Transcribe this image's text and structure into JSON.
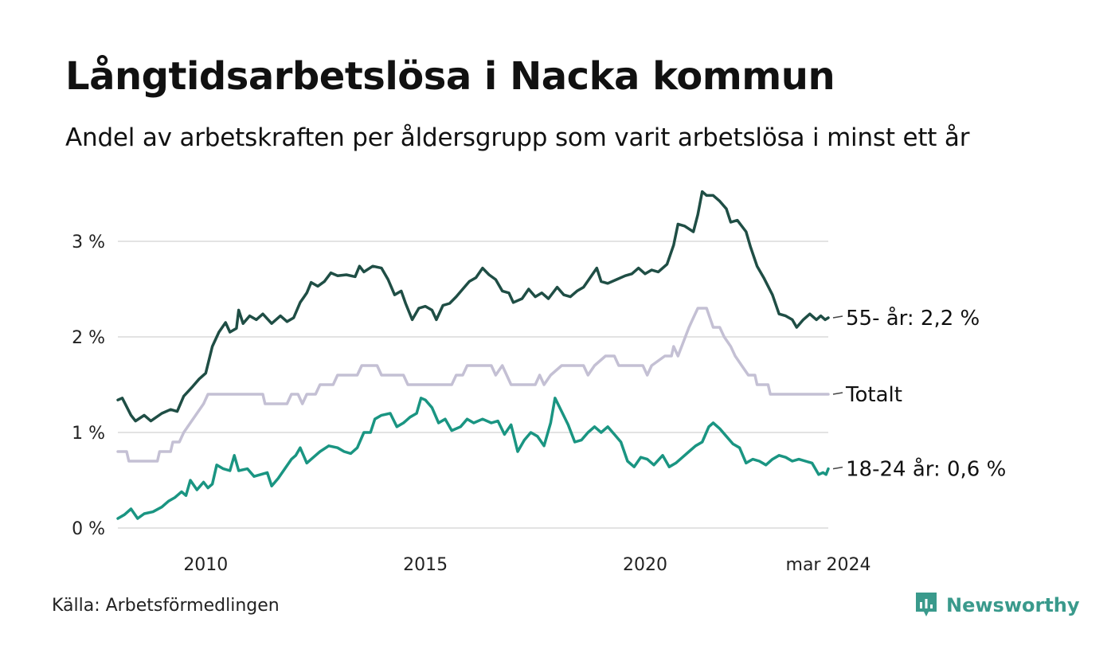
{
  "title": "Långtidsarbetslösa i Nacka kommun",
  "subtitle": "Andel av arbetskraften per åldersgrupp som varit arbetslösa i minst ett år",
  "source": "Källa: Arbetsförmedlingen",
  "brand": "Newsworthy",
  "colors": {
    "s55": "#1f4e45",
    "total": "#c4c0d4",
    "s1824": "#1a9582",
    "grid": "#e3e3e3",
    "brand": "#3a9a8c"
  },
  "chart_data": {
    "type": "line",
    "title": "Långtidsarbetslösa i Nacka kommun",
    "xlabel": "",
    "ylabel": "",
    "ylim": [
      0,
      3.5
    ],
    "x_range": [
      2008.0,
      2024.17
    ],
    "y_ticks": [
      {
        "value": 0,
        "label": "0 %"
      },
      {
        "value": 1,
        "label": "1 %"
      },
      {
        "value": 2,
        "label": "2 %"
      },
      {
        "value": 3,
        "label": "3 %"
      }
    ],
    "x_ticks": [
      {
        "value": 2010,
        "label": "2010"
      },
      {
        "value": 2015,
        "label": "2015"
      },
      {
        "value": 2020,
        "label": "2020"
      },
      {
        "value": 2024.17,
        "label": "mar 2024"
      }
    ],
    "series": [
      {
        "name": "55- år",
        "color_key": "s55",
        "end_label": "55- år: 2,2 %",
        "points": [
          [
            2008.0,
            1.34
          ],
          [
            2008.1,
            1.36
          ],
          [
            2008.3,
            1.18
          ],
          [
            2008.4,
            1.12
          ],
          [
            2008.6,
            1.18
          ],
          [
            2008.75,
            1.12
          ],
          [
            2009.0,
            1.2
          ],
          [
            2009.2,
            1.24
          ],
          [
            2009.35,
            1.22
          ],
          [
            2009.5,
            1.38
          ],
          [
            2009.7,
            1.48
          ],
          [
            2009.85,
            1.56
          ],
          [
            2010.0,
            1.62
          ],
          [
            2010.15,
            1.9
          ],
          [
            2010.3,
            2.05
          ],
          [
            2010.45,
            2.15
          ],
          [
            2010.55,
            2.05
          ],
          [
            2010.7,
            2.09
          ],
          [
            2010.75,
            2.28
          ],
          [
            2010.85,
            2.14
          ],
          [
            2011.0,
            2.22
          ],
          [
            2011.15,
            2.18
          ],
          [
            2011.3,
            2.24
          ],
          [
            2011.5,
            2.14
          ],
          [
            2011.7,
            2.22
          ],
          [
            2011.85,
            2.16
          ],
          [
            2012.0,
            2.2
          ],
          [
            2012.15,
            2.36
          ],
          [
            2012.3,
            2.46
          ],
          [
            2012.4,
            2.57
          ],
          [
            2012.55,
            2.53
          ],
          [
            2012.7,
            2.58
          ],
          [
            2012.85,
            2.67
          ],
          [
            2013.0,
            2.64
          ],
          [
            2013.2,
            2.65
          ],
          [
            2013.4,
            2.63
          ],
          [
            2013.5,
            2.74
          ],
          [
            2013.6,
            2.68
          ],
          [
            2013.8,
            2.74
          ],
          [
            2014.0,
            2.72
          ],
          [
            2014.15,
            2.6
          ],
          [
            2014.3,
            2.44
          ],
          [
            2014.45,
            2.48
          ],
          [
            2014.55,
            2.35
          ],
          [
            2014.7,
            2.18
          ],
          [
            2014.85,
            2.3
          ],
          [
            2015.0,
            2.32
          ],
          [
            2015.15,
            2.28
          ],
          [
            2015.25,
            2.18
          ],
          [
            2015.4,
            2.33
          ],
          [
            2015.55,
            2.35
          ],
          [
            2015.7,
            2.42
          ],
          [
            2015.85,
            2.5
          ],
          [
            2016.0,
            2.58
          ],
          [
            2016.15,
            2.62
          ],
          [
            2016.3,
            2.72
          ],
          [
            2016.45,
            2.65
          ],
          [
            2016.6,
            2.6
          ],
          [
            2016.75,
            2.48
          ],
          [
            2016.9,
            2.46
          ],
          [
            2017.0,
            2.36
          ],
          [
            2017.2,
            2.4
          ],
          [
            2017.35,
            2.5
          ],
          [
            2017.5,
            2.42
          ],
          [
            2017.65,
            2.46
          ],
          [
            2017.8,
            2.4
          ],
          [
            2018.0,
            2.52
          ],
          [
            2018.15,
            2.44
          ],
          [
            2018.3,
            2.42
          ],
          [
            2018.45,
            2.48
          ],
          [
            2018.6,
            2.52
          ],
          [
            2018.75,
            2.62
          ],
          [
            2018.9,
            2.72
          ],
          [
            2019.0,
            2.58
          ],
          [
            2019.15,
            2.56
          ],
          [
            2019.35,
            2.6
          ],
          [
            2019.55,
            2.64
          ],
          [
            2019.7,
            2.66
          ],
          [
            2019.85,
            2.72
          ],
          [
            2020.0,
            2.66
          ],
          [
            2020.15,
            2.7
          ],
          [
            2020.3,
            2.68
          ],
          [
            2020.5,
            2.76
          ],
          [
            2020.65,
            2.96
          ],
          [
            2020.75,
            3.18
          ],
          [
            2020.9,
            3.16
          ],
          [
            2021.1,
            3.1
          ],
          [
            2021.2,
            3.28
          ],
          [
            2021.3,
            3.52
          ],
          [
            2021.4,
            3.48
          ],
          [
            2021.55,
            3.48
          ],
          [
            2021.7,
            3.42
          ],
          [
            2021.85,
            3.34
          ],
          [
            2021.95,
            3.2
          ],
          [
            2022.1,
            3.22
          ],
          [
            2022.3,
            3.1
          ],
          [
            2022.4,
            2.94
          ],
          [
            2022.55,
            2.74
          ],
          [
            2022.7,
            2.62
          ],
          [
            2022.9,
            2.44
          ],
          [
            2023.05,
            2.24
          ],
          [
            2023.2,
            2.22
          ],
          [
            2023.35,
            2.18
          ],
          [
            2023.45,
            2.1
          ],
          [
            2023.6,
            2.18
          ],
          [
            2023.75,
            2.24
          ],
          [
            2023.9,
            2.18
          ],
          [
            2024.0,
            2.22
          ],
          [
            2024.1,
            2.18
          ],
          [
            2024.17,
            2.2
          ]
        ]
      },
      {
        "name": "Totalt",
        "color_key": "total",
        "end_label": "Totalt",
        "points": [
          [
            2008.0,
            0.8
          ],
          [
            2008.2,
            0.8
          ],
          [
            2008.25,
            0.7
          ],
          [
            2008.9,
            0.7
          ],
          [
            2008.95,
            0.8
          ],
          [
            2009.2,
            0.8
          ],
          [
            2009.25,
            0.9
          ],
          [
            2009.4,
            0.9
          ],
          [
            2009.5,
            1.0
          ],
          [
            2009.65,
            1.1
          ],
          [
            2009.8,
            1.2
          ],
          [
            2009.95,
            1.3
          ],
          [
            2010.05,
            1.4
          ],
          [
            2011.3,
            1.4
          ],
          [
            2011.35,
            1.3
          ],
          [
            2011.85,
            1.3
          ],
          [
            2011.95,
            1.4
          ],
          [
            2012.1,
            1.4
          ],
          [
            2012.2,
            1.3
          ],
          [
            2012.3,
            1.4
          ],
          [
            2012.5,
            1.4
          ],
          [
            2012.6,
            1.5
          ],
          [
            2012.9,
            1.5
          ],
          [
            2013.0,
            1.6
          ],
          [
            2013.45,
            1.6
          ],
          [
            2013.55,
            1.7
          ],
          [
            2013.9,
            1.7
          ],
          [
            2014.0,
            1.6
          ],
          [
            2014.5,
            1.6
          ],
          [
            2014.6,
            1.5
          ],
          [
            2015.6,
            1.5
          ],
          [
            2015.7,
            1.6
          ],
          [
            2015.85,
            1.6
          ],
          [
            2015.95,
            1.7
          ],
          [
            2016.5,
            1.7
          ],
          [
            2016.6,
            1.6
          ],
          [
            2016.75,
            1.7
          ],
          [
            2016.95,
            1.5
          ],
          [
            2017.5,
            1.5
          ],
          [
            2017.6,
            1.6
          ],
          [
            2017.7,
            1.5
          ],
          [
            2017.85,
            1.6
          ],
          [
            2018.1,
            1.7
          ],
          [
            2018.6,
            1.7
          ],
          [
            2018.7,
            1.6
          ],
          [
            2018.85,
            1.7
          ],
          [
            2019.1,
            1.8
          ],
          [
            2019.3,
            1.8
          ],
          [
            2019.4,
            1.7
          ],
          [
            2019.95,
            1.7
          ],
          [
            2020.05,
            1.6
          ],
          [
            2020.15,
            1.7
          ],
          [
            2020.45,
            1.8
          ],
          [
            2020.6,
            1.8
          ],
          [
            2020.65,
            1.9
          ],
          [
            2020.75,
            1.8
          ],
          [
            2021.0,
            2.1
          ],
          [
            2021.1,
            2.2
          ],
          [
            2021.2,
            2.3
          ],
          [
            2021.4,
            2.3
          ],
          [
            2021.55,
            2.1
          ],
          [
            2021.7,
            2.1
          ],
          [
            2021.8,
            2.0
          ],
          [
            2021.95,
            1.9
          ],
          [
            2022.05,
            1.8
          ],
          [
            2022.2,
            1.7
          ],
          [
            2022.35,
            1.6
          ],
          [
            2022.5,
            1.6
          ],
          [
            2022.55,
            1.5
          ],
          [
            2022.8,
            1.5
          ],
          [
            2022.85,
            1.4
          ],
          [
            2024.17,
            1.4
          ]
        ]
      },
      {
        "name": "18-24 år",
        "color_key": "s1824",
        "end_label": "18-24 år: 0,6 %",
        "points": [
          [
            2008.0,
            0.1
          ],
          [
            2008.15,
            0.14
          ],
          [
            2008.3,
            0.2
          ],
          [
            2008.45,
            0.1
          ],
          [
            2008.6,
            0.15
          ],
          [
            2008.8,
            0.17
          ],
          [
            2009.0,
            0.22
          ],
          [
            2009.15,
            0.28
          ],
          [
            2009.3,
            0.32
          ],
          [
            2009.45,
            0.38
          ],
          [
            2009.55,
            0.34
          ],
          [
            2009.65,
            0.5
          ],
          [
            2009.8,
            0.4
          ],
          [
            2009.95,
            0.48
          ],
          [
            2010.05,
            0.42
          ],
          [
            2010.15,
            0.46
          ],
          [
            2010.25,
            0.66
          ],
          [
            2010.4,
            0.62
          ],
          [
            2010.55,
            0.6
          ],
          [
            2010.65,
            0.76
          ],
          [
            2010.75,
            0.6
          ],
          [
            2010.95,
            0.62
          ],
          [
            2011.1,
            0.54
          ],
          [
            2011.25,
            0.56
          ],
          [
            2011.4,
            0.58
          ],
          [
            2011.5,
            0.44
          ],
          [
            2011.65,
            0.52
          ],
          [
            2011.8,
            0.62
          ],
          [
            2011.95,
            0.72
          ],
          [
            2012.05,
            0.76
          ],
          [
            2012.15,
            0.84
          ],
          [
            2012.3,
            0.68
          ],
          [
            2012.45,
            0.74
          ],
          [
            2012.6,
            0.8
          ],
          [
            2012.8,
            0.86
          ],
          [
            2013.0,
            0.84
          ],
          [
            2013.15,
            0.8
          ],
          [
            2013.3,
            0.78
          ],
          [
            2013.45,
            0.84
          ],
          [
            2013.6,
            1.0
          ],
          [
            2013.75,
            1.0
          ],
          [
            2013.85,
            1.14
          ],
          [
            2014.0,
            1.18
          ],
          [
            2014.2,
            1.2
          ],
          [
            2014.35,
            1.06
          ],
          [
            2014.5,
            1.1
          ],
          [
            2014.65,
            1.16
          ],
          [
            2014.8,
            1.2
          ],
          [
            2014.9,
            1.36
          ],
          [
            2015.0,
            1.34
          ],
          [
            2015.15,
            1.26
          ],
          [
            2015.3,
            1.1
          ],
          [
            2015.45,
            1.14
          ],
          [
            2015.6,
            1.02
          ],
          [
            2015.8,
            1.06
          ],
          [
            2015.95,
            1.14
          ],
          [
            2016.1,
            1.1
          ],
          [
            2016.3,
            1.14
          ],
          [
            2016.5,
            1.1
          ],
          [
            2016.65,
            1.12
          ],
          [
            2016.8,
            0.98
          ],
          [
            2016.95,
            1.08
          ],
          [
            2017.1,
            0.8
          ],
          [
            2017.25,
            0.92
          ],
          [
            2017.4,
            1.0
          ],
          [
            2017.55,
            0.96
          ],
          [
            2017.7,
            0.86
          ],
          [
            2017.85,
            1.1
          ],
          [
            2017.95,
            1.36
          ],
          [
            2018.1,
            1.22
          ],
          [
            2018.25,
            1.08
          ],
          [
            2018.4,
            0.9
          ],
          [
            2018.55,
            0.92
          ],
          [
            2018.7,
            1.0
          ],
          [
            2018.85,
            1.06
          ],
          [
            2019.0,
            1.0
          ],
          [
            2019.15,
            1.06
          ],
          [
            2019.3,
            0.98
          ],
          [
            2019.45,
            0.9
          ],
          [
            2019.6,
            0.7
          ],
          [
            2019.75,
            0.64
          ],
          [
            2019.9,
            0.74
          ],
          [
            2020.05,
            0.72
          ],
          [
            2020.2,
            0.66
          ],
          [
            2020.4,
            0.76
          ],
          [
            2020.55,
            0.64
          ],
          [
            2020.7,
            0.68
          ],
          [
            2020.85,
            0.74
          ],
          [
            2021.0,
            0.8
          ],
          [
            2021.15,
            0.86
          ],
          [
            2021.3,
            0.9
          ],
          [
            2021.45,
            1.06
          ],
          [
            2021.55,
            1.1
          ],
          [
            2021.7,
            1.04
          ],
          [
            2021.85,
            0.96
          ],
          [
            2022.0,
            0.88
          ],
          [
            2022.15,
            0.84
          ],
          [
            2022.3,
            0.68
          ],
          [
            2022.45,
            0.72
          ],
          [
            2022.6,
            0.7
          ],
          [
            2022.75,
            0.66
          ],
          [
            2022.9,
            0.72
          ],
          [
            2023.05,
            0.76
          ],
          [
            2023.2,
            0.74
          ],
          [
            2023.35,
            0.7
          ],
          [
            2023.5,
            0.72
          ],
          [
            2023.65,
            0.7
          ],
          [
            2023.8,
            0.68
          ],
          [
            2023.95,
            0.56
          ],
          [
            2024.05,
            0.58
          ],
          [
            2024.12,
            0.56
          ],
          [
            2024.17,
            0.62
          ]
        ]
      }
    ]
  }
}
